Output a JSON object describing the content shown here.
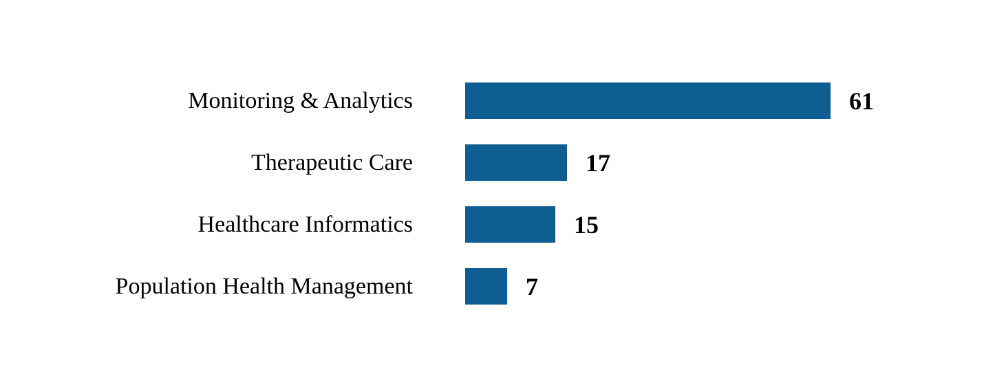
{
  "chart_data": {
    "type": "bar",
    "orientation": "horizontal",
    "title": "",
    "xlabel": "",
    "ylabel": "",
    "categories": [
      "Monitoring & Analytics",
      "Therapeutic Care",
      "Healthcare Informatics",
      "Population Health Management"
    ],
    "values": [
      61,
      17,
      15,
      7
    ],
    "xlim": [
      0,
      61
    ],
    "grid": false,
    "legend": false,
    "data_labels_shown": true,
    "bar_color": "#0F5E92",
    "label_color": "#000000",
    "value_label_color": "#000000",
    "background_color": "#FFFFFF"
  }
}
